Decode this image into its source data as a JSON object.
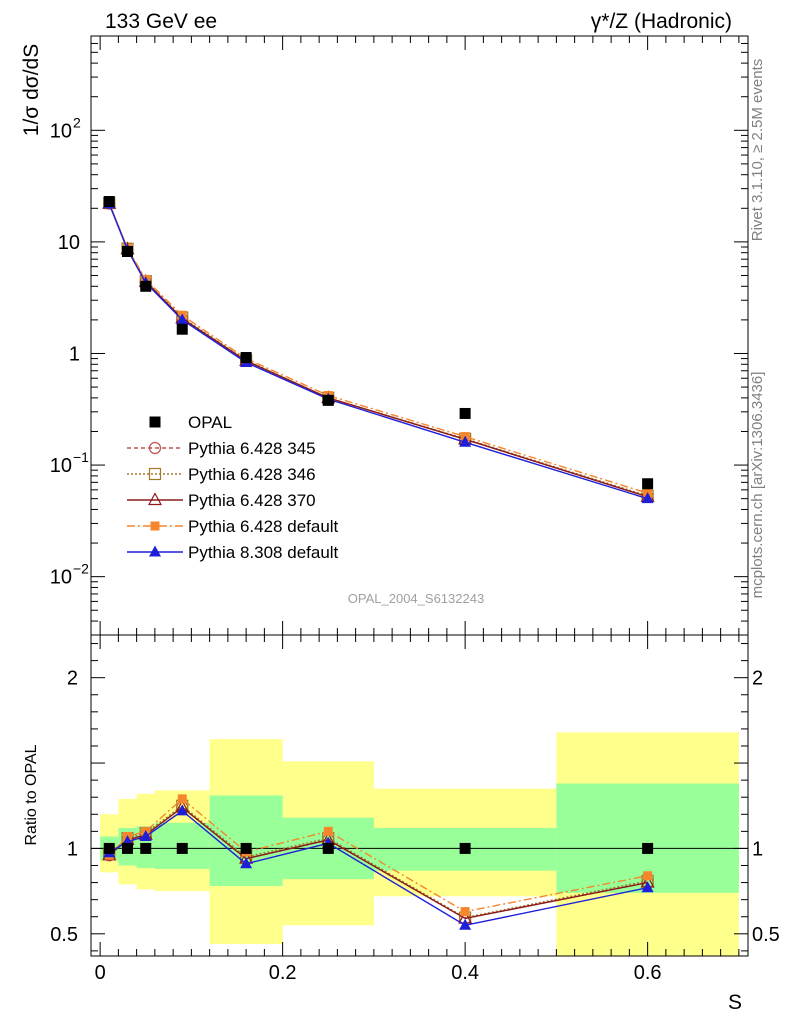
{
  "header": {
    "left": "133 GeV ee",
    "right": "γ*/Z (Hadronic)"
  },
  "side_text": {
    "rivet": "Rivet 3.1.10, ≥ 2.5M events",
    "mcplots": "mcplots.cern.ch [arXiv:1306.3436]"
  },
  "watermark": "OPAL_2004_S6132243",
  "chart_data": [
    {
      "type": "line",
      "panel": "main",
      "ylabel": "1/σ dσ/dS",
      "yscale": "log",
      "ylim": [
        0.003,
        700
      ],
      "xlim": [
        -0.01,
        0.71
      ],
      "yticks": [
        {
          "v": 0.01,
          "label": "10",
          "exp": "−2"
        },
        {
          "v": 0.1,
          "label": "10",
          "exp": "−1"
        },
        {
          "v": 1,
          "label": "1",
          "exp": ""
        },
        {
          "v": 10,
          "label": "10",
          "exp": ""
        },
        {
          "v": 100,
          "label": "10",
          "exp": "2"
        }
      ],
      "x": [
        0.01,
        0.03,
        0.05,
        0.09,
        0.16,
        0.25,
        0.4,
        0.6
      ],
      "data": {
        "name": "OPAL",
        "values": [
          23.0,
          8.2,
          4.0,
          1.65,
          0.92,
          0.38,
          0.29,
          0.068
        ]
      },
      "series": [
        {
          "name": "Pythia 6.428 345",
          "color": "#c0504d",
          "dash": "4,3",
          "marker": "circle-open",
          "values": [
            22.0,
            8.6,
            4.4,
            2.05,
            0.86,
            0.4,
            0.17,
            0.052
          ]
        },
        {
          "name": "Pythia 6.428 346",
          "color": "#a07a2a",
          "dash": "2,2",
          "marker": "square-open",
          "values": [
            22.3,
            8.7,
            4.45,
            2.1,
            0.87,
            0.4,
            0.172,
            0.053
          ]
        },
        {
          "name": "Pythia 6.428 370",
          "color": "#8b1a1a",
          "dash": "",
          "marker": "triangle-open",
          "values": [
            22.0,
            8.6,
            4.4,
            2.06,
            0.86,
            0.4,
            0.17,
            0.052
          ]
        },
        {
          "name": "Pythia 6.428 default",
          "color": "#f5862b",
          "dash": "8,3,2,3",
          "marker": "square-filled",
          "values": [
            22.0,
            8.8,
            4.6,
            2.2,
            0.9,
            0.42,
            0.18,
            0.056
          ]
        },
        {
          "name": "Pythia 8.308 default",
          "color": "#1f1fd8",
          "dash": "",
          "marker": "triangle-filled",
          "values": [
            21.9,
            8.5,
            4.3,
            2.0,
            0.83,
            0.39,
            0.16,
            0.05
          ]
        }
      ]
    },
    {
      "type": "line",
      "panel": "ratio",
      "ylabel": "Ratio to OPAL",
      "xlabel": "S",
      "ylim": [
        0.37,
        2.25
      ],
      "xlim": [
        -0.01,
        0.71
      ],
      "xticks": [
        0,
        0.2,
        0.4,
        0.6
      ],
      "xticklabels": [
        "0",
        "0.2",
        "0.4",
        "0.6"
      ],
      "yticks": [
        0.5,
        1,
        2
      ],
      "yticklabels": [
        "0.5",
        "1",
        "2"
      ],
      "bands": [
        {
          "x0": 0.0,
          "x1": 0.02,
          "g_lo": 0.93,
          "g_hi": 1.07,
          "y_lo": 0.86,
          "y_hi": 1.2
        },
        {
          "x0": 0.02,
          "x1": 0.04,
          "g_lo": 0.9,
          "g_hi": 1.12,
          "y_lo": 0.79,
          "y_hi": 1.29
        },
        {
          "x0": 0.04,
          "x1": 0.06,
          "g_lo": 0.885,
          "g_hi": 1.13,
          "y_lo": 0.76,
          "y_hi": 1.32
        },
        {
          "x0": 0.06,
          "x1": 0.12,
          "g_lo": 0.88,
          "g_hi": 1.15,
          "y_lo": 0.75,
          "y_hi": 1.34
        },
        {
          "x0": 0.12,
          "x1": 0.2,
          "g_lo": 0.78,
          "g_hi": 1.31,
          "y_lo": 0.44,
          "y_hi": 1.64
        },
        {
          "x0": 0.2,
          "x1": 0.3,
          "g_lo": 0.82,
          "g_hi": 1.18,
          "y_lo": 0.55,
          "y_hi": 1.51
        },
        {
          "x0": 0.3,
          "x1": 0.5,
          "g_lo": 0.87,
          "g_hi": 1.12,
          "y_lo": 0.72,
          "y_hi": 1.35
        },
        {
          "x0": 0.5,
          "x1": 0.7,
          "g_lo": 0.74,
          "g_hi": 1.38,
          "y_lo": 0.37,
          "y_hi": 1.68
        }
      ],
      "x": [
        0.01,
        0.03,
        0.05,
        0.09,
        0.16,
        0.25,
        0.4,
        0.6
      ],
      "series": [
        {
          "name": "Pythia 6.428 345",
          "values": [
            0.96,
            1.05,
            1.08,
            1.24,
            0.94,
            1.05,
            0.59,
            0.8
          ]
        },
        {
          "name": "Pythia 6.428 346",
          "values": [
            0.97,
            1.06,
            1.09,
            1.25,
            0.95,
            1.06,
            0.595,
            0.81
          ]
        },
        {
          "name": "Pythia 6.428 370",
          "values": [
            0.96,
            1.05,
            1.08,
            1.24,
            0.94,
            1.05,
            0.59,
            0.8
          ]
        },
        {
          "name": "Pythia 6.428 default",
          "values": [
            0.96,
            1.07,
            1.1,
            1.29,
            0.98,
            1.1,
            0.63,
            0.84
          ]
        },
        {
          "name": "Pythia 8.308 default",
          "values": [
            0.975,
            1.04,
            1.07,
            1.22,
            0.91,
            1.03,
            0.55,
            0.77
          ]
        }
      ]
    }
  ]
}
